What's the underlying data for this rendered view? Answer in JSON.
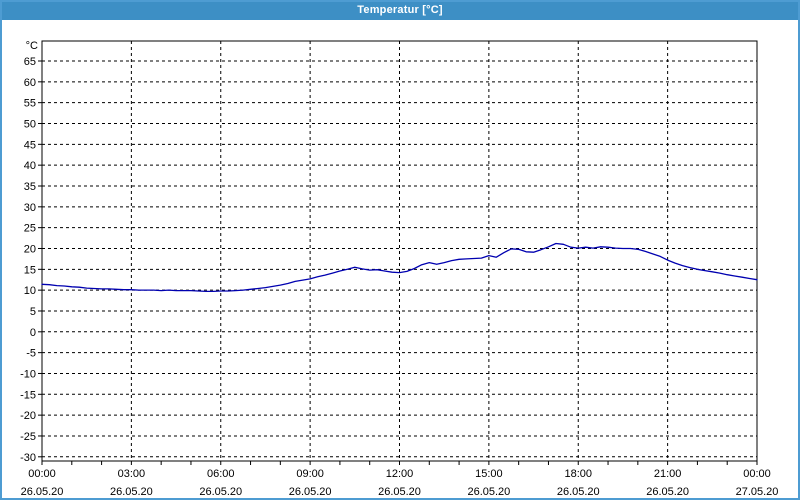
{
  "window": {
    "title": "Temperatur [°C]"
  },
  "colors": {
    "titlebar_bg": "#3D8FC5",
    "frame_border": "#4E9CD2",
    "plot_bg": "#FFFFFF",
    "grid": "#000000",
    "axis": "#000000",
    "line": "#0000B0",
    "title_text": "#FFFFFF",
    "label_text": "#000000"
  },
  "chart_data": {
    "type": "line",
    "title": "Temperatur [°C]",
    "ylabel": "°C",
    "xlabel": "",
    "legend": "none",
    "grid": {
      "style": "dashed",
      "color": "#000000"
    },
    "y_axis": {
      "unit": "°C",
      "range": [
        -30,
        65
      ],
      "tick_step": 5,
      "ticks": [
        65,
        60,
        55,
        50,
        45,
        40,
        35,
        30,
        25,
        20,
        15,
        10,
        5,
        0,
        -5,
        -10,
        -15,
        -20,
        -25,
        -30
      ]
    },
    "x_axis": {
      "range_hours": [
        0,
        24
      ],
      "minor_tick_interval_hours": 1,
      "major_tick_hours": [
        0,
        3,
        6,
        9,
        12,
        15,
        18,
        21,
        24
      ],
      "tick_labels": [
        {
          "time": "00:00",
          "date": "26.05.20"
        },
        {
          "time": "03:00",
          "date": "26.05.20"
        },
        {
          "time": "06:00",
          "date": "26.05.20"
        },
        {
          "time": "09:00",
          "date": "26.05.20"
        },
        {
          "time": "12:00",
          "date": "26.05.20"
        },
        {
          "time": "15:00",
          "date": "26.05.20"
        },
        {
          "time": "18:00",
          "date": "26.05.20"
        },
        {
          "time": "21:00",
          "date": "26.05.20"
        },
        {
          "time": "00:00",
          "date": "27.05.20"
        }
      ]
    },
    "series": [
      {
        "name": "Temperatur",
        "color": "#0000B0",
        "x_hours": [
          0,
          0.25,
          0.5,
          0.75,
          1,
          1.25,
          1.5,
          1.75,
          2,
          2.25,
          2.5,
          2.75,
          3,
          3.25,
          3.5,
          3.75,
          4,
          4.25,
          4.5,
          4.75,
          5,
          5.25,
          5.5,
          5.75,
          6,
          6.25,
          6.5,
          6.75,
          7,
          7.25,
          7.5,
          7.75,
          8,
          8.25,
          8.5,
          8.75,
          9,
          9.25,
          9.5,
          9.75,
          10,
          10.25,
          10.5,
          10.75,
          11,
          11.25,
          11.5,
          11.75,
          12,
          12.25,
          12.5,
          12.75,
          13,
          13.25,
          13.5,
          13.75,
          14,
          14.25,
          14.5,
          14.75,
          15,
          15.25,
          15.5,
          15.75,
          16,
          16.25,
          16.5,
          16.75,
          17,
          17.25,
          17.5,
          17.75,
          18,
          18.25,
          18.5,
          18.75,
          19,
          19.25,
          19.5,
          19.75,
          20,
          20.25,
          20.5,
          20.75,
          21,
          21.25,
          21.5,
          21.75,
          22,
          22.25,
          22.5,
          22.75,
          23,
          23.25,
          23.5,
          23.75,
          24
        ],
        "values": [
          11.4,
          11.3,
          11.1,
          11.0,
          10.8,
          10.7,
          10.5,
          10.4,
          10.3,
          10.3,
          10.2,
          10.1,
          10.1,
          10.0,
          10.0,
          10.0,
          9.9,
          10.0,
          9.9,
          9.9,
          9.9,
          9.8,
          9.7,
          9.7,
          9.8,
          9.8,
          9.9,
          10.0,
          10.2,
          10.4,
          10.6,
          10.9,
          11.2,
          11.6,
          12.1,
          12.4,
          12.7,
          13.2,
          13.6,
          14.1,
          14.6,
          15.0,
          15.5,
          15.1,
          14.8,
          14.9,
          14.6,
          14.3,
          14.2,
          14.5,
          15.2,
          16.1,
          16.6,
          16.2,
          16.6,
          17.1,
          17.4,
          17.5,
          17.6,
          17.7,
          18.3,
          17.9,
          19.0,
          19.9,
          19.8,
          19.2,
          19.1,
          19.7,
          20.4,
          21.2,
          21.0,
          20.3,
          20.1,
          20.3,
          20.1,
          20.4,
          20.3,
          20.1,
          20.0,
          20.0,
          19.8,
          19.3,
          18.7,
          18.1,
          17.2,
          16.5,
          15.9,
          15.4,
          15.0,
          14.7,
          14.4,
          14.1,
          13.7,
          13.4,
          13.1,
          12.8,
          12.5
        ]
      }
    ]
  }
}
